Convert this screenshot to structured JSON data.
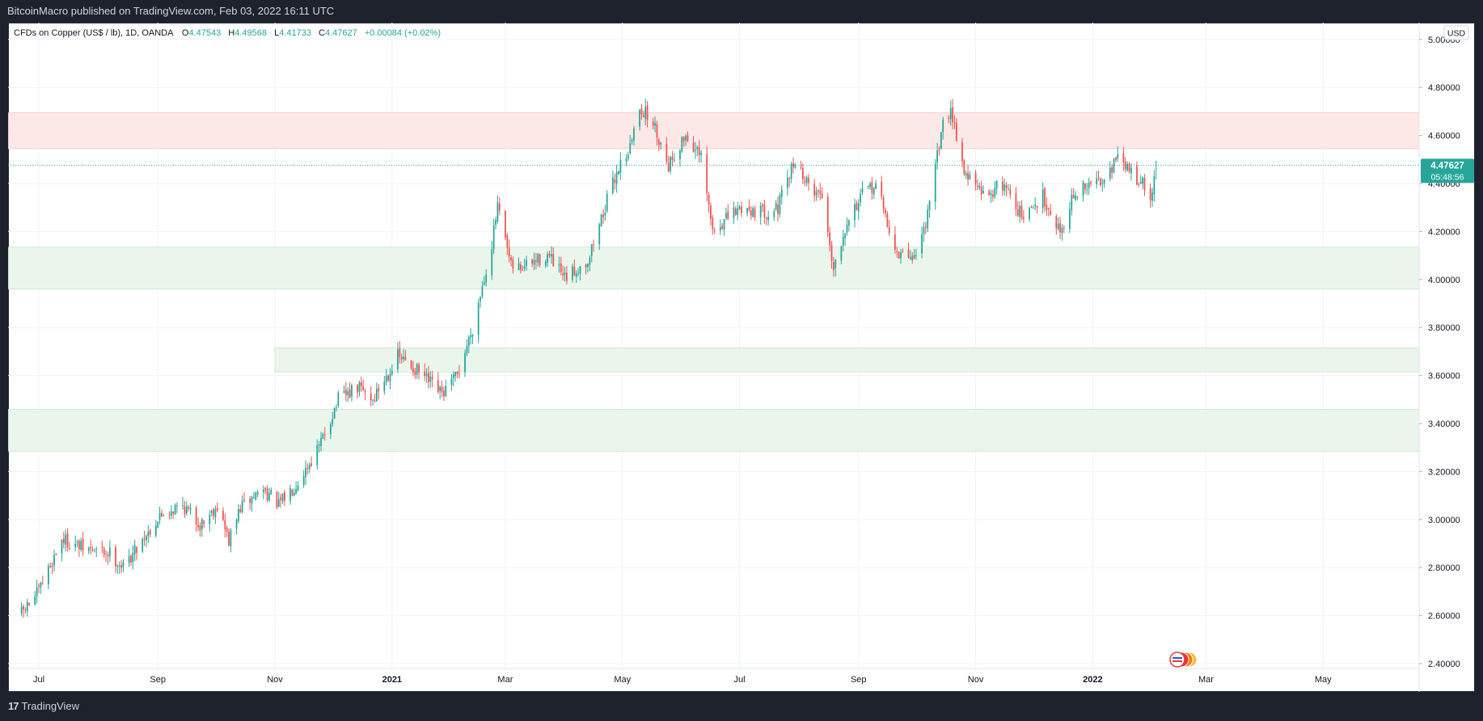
{
  "header": {
    "published_text": "BitcoinMacro published on TradingView.com, Feb 03, 2022 16:11 UTC"
  },
  "footer": {
    "brand": "TradingView",
    "brand_mark": "17"
  },
  "colors": {
    "up": "#26a69a",
    "down": "#ef5350",
    "resistance_zone": "#fde5e5",
    "support_zone": "#e8f5e9",
    "price_tag": "#26a69a",
    "grid": "#f0f3fa"
  },
  "legend": {
    "symbol": "CFDs on Copper (US$ / lb), 1D, OANDA",
    "o_label": "O",
    "o_value": "4.47543",
    "h_label": "H",
    "h_value": "4.49568",
    "l_label": "L",
    "l_value": "4.41733",
    "c_label": "C",
    "c_value": "4.47627",
    "change": "+0.00084 (+0.02%)"
  },
  "currency_button": "USD",
  "price_tag": {
    "price": "4.47627",
    "countdown": "05:48:56"
  },
  "chart_data": {
    "type": "candlestick",
    "title": "CFDs on Copper (US$ / lb), 1D, OANDA",
    "x_start": "2020-06-22",
    "x_end": "2022-02-03",
    "xlim": [
      "2020-06-15",
      "2022-06-20"
    ],
    "ylim": [
      2.38,
      5.07
    ],
    "y_ticks": [
      "5.00000",
      "4.80000",
      "4.60000",
      "4.40000",
      "4.20000",
      "4.00000",
      "3.80000",
      "3.60000",
      "3.40000",
      "3.20000",
      "3.00000",
      "2.80000",
      "2.60000",
      "2.40000"
    ],
    "x_ticks": [
      {
        "label": "Jul",
        "date": "2020-07-01"
      },
      {
        "label": "Sep",
        "date": "2020-09-01"
      },
      {
        "label": "Nov",
        "date": "2020-11-01"
      },
      {
        "label": "2021",
        "date": "2021-01-01"
      },
      {
        "label": "Mar",
        "date": "2021-03-01"
      },
      {
        "label": "May",
        "date": "2021-05-01"
      },
      {
        "label": "Jul",
        "date": "2021-07-01"
      },
      {
        "label": "Sep",
        "date": "2021-09-01"
      },
      {
        "label": "Nov",
        "date": "2021-11-01"
      },
      {
        "label": "2022",
        "date": "2022-01-01"
      },
      {
        "label": "Mar",
        "date": "2022-03-01"
      },
      {
        "label": "May",
        "date": "2022-05-01"
      }
    ],
    "last_price": 4.47627,
    "zones": [
      {
        "kind": "resistance",
        "from": 4.545,
        "to": 4.695,
        "start": "2020-06-15"
      },
      {
        "kind": "support",
        "from": 3.96,
        "to": 4.135,
        "start": "2020-06-15"
      },
      {
        "kind": "support",
        "from": 3.615,
        "to": 3.715,
        "start": "2020-11-01"
      },
      {
        "kind": "support",
        "from": 3.285,
        "to": 3.46,
        "start": "2020-06-15"
      }
    ],
    "anchors": [
      [
        "2020-06-22",
        2.61
      ],
      [
        "2020-07-01",
        2.7
      ],
      [
        "2020-07-13",
        2.92
      ],
      [
        "2020-07-24",
        2.88
      ],
      [
        "2020-08-07",
        2.86
      ],
      [
        "2020-08-14",
        2.8
      ],
      [
        "2020-08-24",
        2.92
      ],
      [
        "2020-09-04",
        3.03
      ],
      [
        "2020-09-14",
        3.06
      ],
      [
        "2020-09-23",
        2.98
      ],
      [
        "2020-10-02",
        3.06
      ],
      [
        "2020-10-08",
        2.91
      ],
      [
        "2020-10-14",
        3.05
      ],
      [
        "2020-10-26",
        3.13
      ],
      [
        "2020-11-03",
        3.06
      ],
      [
        "2020-11-12",
        3.15
      ],
      [
        "2020-11-24",
        3.3
      ],
      [
        "2020-12-04",
        3.5
      ],
      [
        "2020-12-15",
        3.55
      ],
      [
        "2020-12-22",
        3.5
      ],
      [
        "2021-01-04",
        3.68
      ],
      [
        "2021-01-14",
        3.62
      ],
      [
        "2021-01-27",
        3.52
      ],
      [
        "2021-02-04",
        3.6
      ],
      [
        "2021-02-12",
        3.8
      ],
      [
        "2021-02-22",
        4.15
      ],
      [
        "2021-02-25",
        4.3
      ],
      [
        "2021-03-04",
        4.05
      ],
      [
        "2021-03-10",
        4.05
      ],
      [
        "2021-03-23",
        4.1
      ],
      [
        "2021-04-01",
        4.0
      ],
      [
        "2021-04-13",
        4.08
      ],
      [
        "2021-04-21",
        4.28
      ],
      [
        "2021-04-29",
        4.47
      ],
      [
        "2021-05-05",
        4.55
      ],
      [
        "2021-05-10",
        4.72
      ],
      [
        "2021-05-17",
        4.65
      ],
      [
        "2021-05-25",
        4.48
      ],
      [
        "2021-06-03",
        4.6
      ],
      [
        "2021-06-11",
        4.5
      ],
      [
        "2021-06-17",
        4.2
      ],
      [
        "2021-06-24",
        4.25
      ],
      [
        "2021-07-02",
        4.3
      ],
      [
        "2021-07-14",
        4.28
      ],
      [
        "2021-07-21",
        4.3
      ],
      [
        "2021-07-30",
        4.5
      ],
      [
        "2021-08-05",
        4.4
      ],
      [
        "2021-08-13",
        4.35
      ],
      [
        "2021-08-19",
        4.05
      ],
      [
        "2021-08-26",
        4.25
      ],
      [
        "2021-09-03",
        4.35
      ],
      [
        "2021-09-10",
        4.4
      ],
      [
        "2021-09-21",
        4.1
      ],
      [
        "2021-10-01",
        4.1
      ],
      [
        "2021-10-08",
        4.3
      ],
      [
        "2021-10-14",
        4.62
      ],
      [
        "2021-10-19",
        4.72
      ],
      [
        "2021-10-26",
        4.45
      ],
      [
        "2021-11-05",
        4.35
      ],
      [
        "2021-11-16",
        4.4
      ],
      [
        "2021-11-26",
        4.25
      ],
      [
        "2021-12-06",
        4.35
      ],
      [
        "2021-12-15",
        4.2
      ],
      [
        "2021-12-22",
        4.35
      ],
      [
        "2022-01-05",
        4.42
      ],
      [
        "2022-01-14",
        4.5
      ],
      [
        "2022-01-21",
        4.45
      ],
      [
        "2022-01-27",
        4.4
      ],
      [
        "2022-01-31",
        4.32
      ],
      [
        "2022-02-03",
        4.476
      ]
    ]
  }
}
